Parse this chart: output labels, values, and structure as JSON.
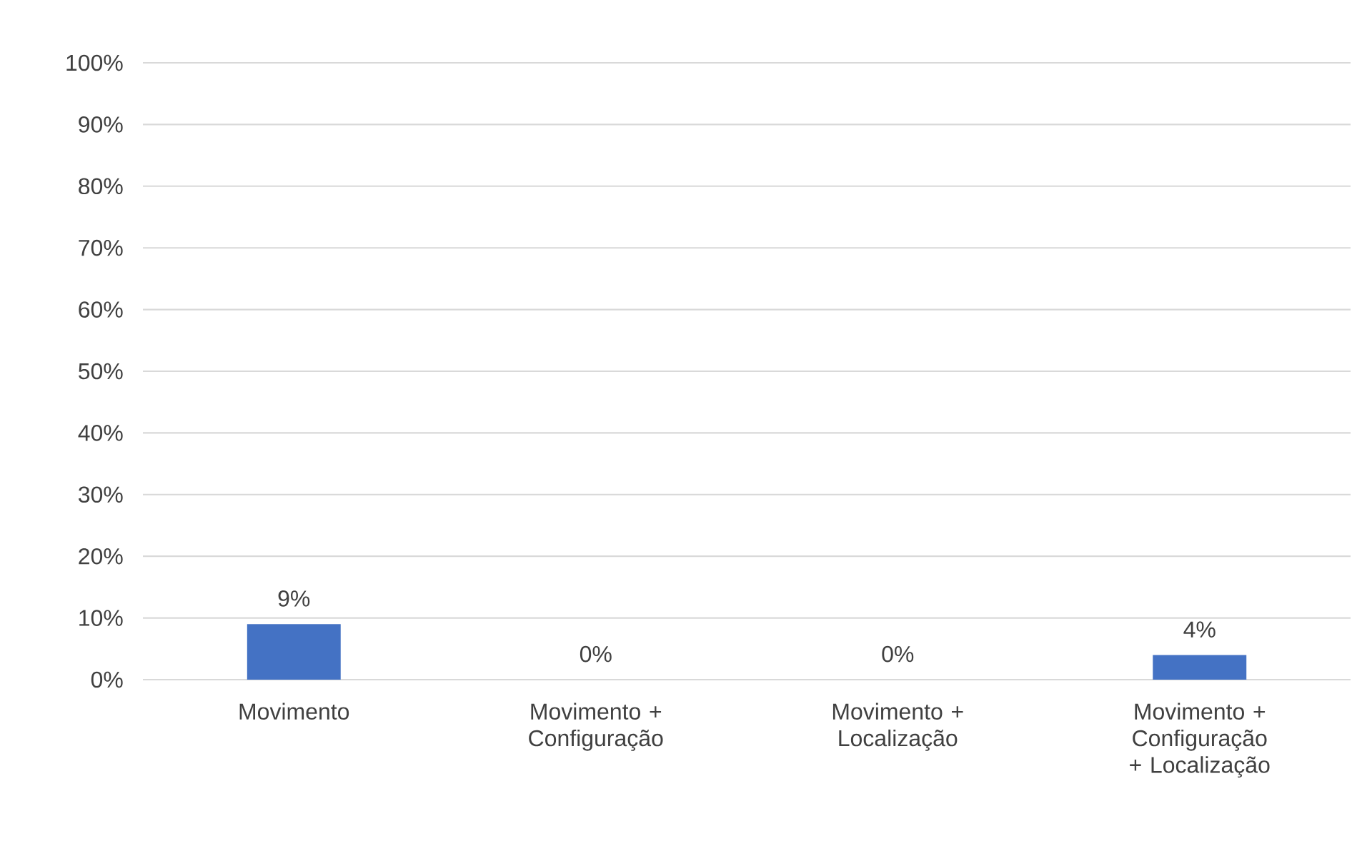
{
  "chart_data": {
    "type": "bar",
    "categories": [
      "Movimento",
      "Movimento + Configuração",
      "Movimento + Localização",
      "Movimento + Configuração + Localização"
    ],
    "values": [
      9,
      0,
      0,
      4
    ],
    "value_labels": [
      "9%",
      "0%",
      "0%",
      "4%"
    ],
    "color": "#4472c4",
    "ylim": [
      0,
      100
    ],
    "yticks": [
      {
        "value": 0,
        "label": "0%"
      },
      {
        "value": 10,
        "label": "10%"
      },
      {
        "value": 20,
        "label": "20%"
      },
      {
        "value": 30,
        "label": "30%"
      },
      {
        "value": 40,
        "label": "40%"
      },
      {
        "value": 50,
        "label": "50%"
      },
      {
        "value": 60,
        "label": "60%"
      },
      {
        "value": 70,
        "label": "70%"
      },
      {
        "value": 80,
        "label": "80%"
      },
      {
        "value": 90,
        "label": "90%"
      },
      {
        "value": 100,
        "label": "100%"
      }
    ],
    "grid": "y"
  }
}
